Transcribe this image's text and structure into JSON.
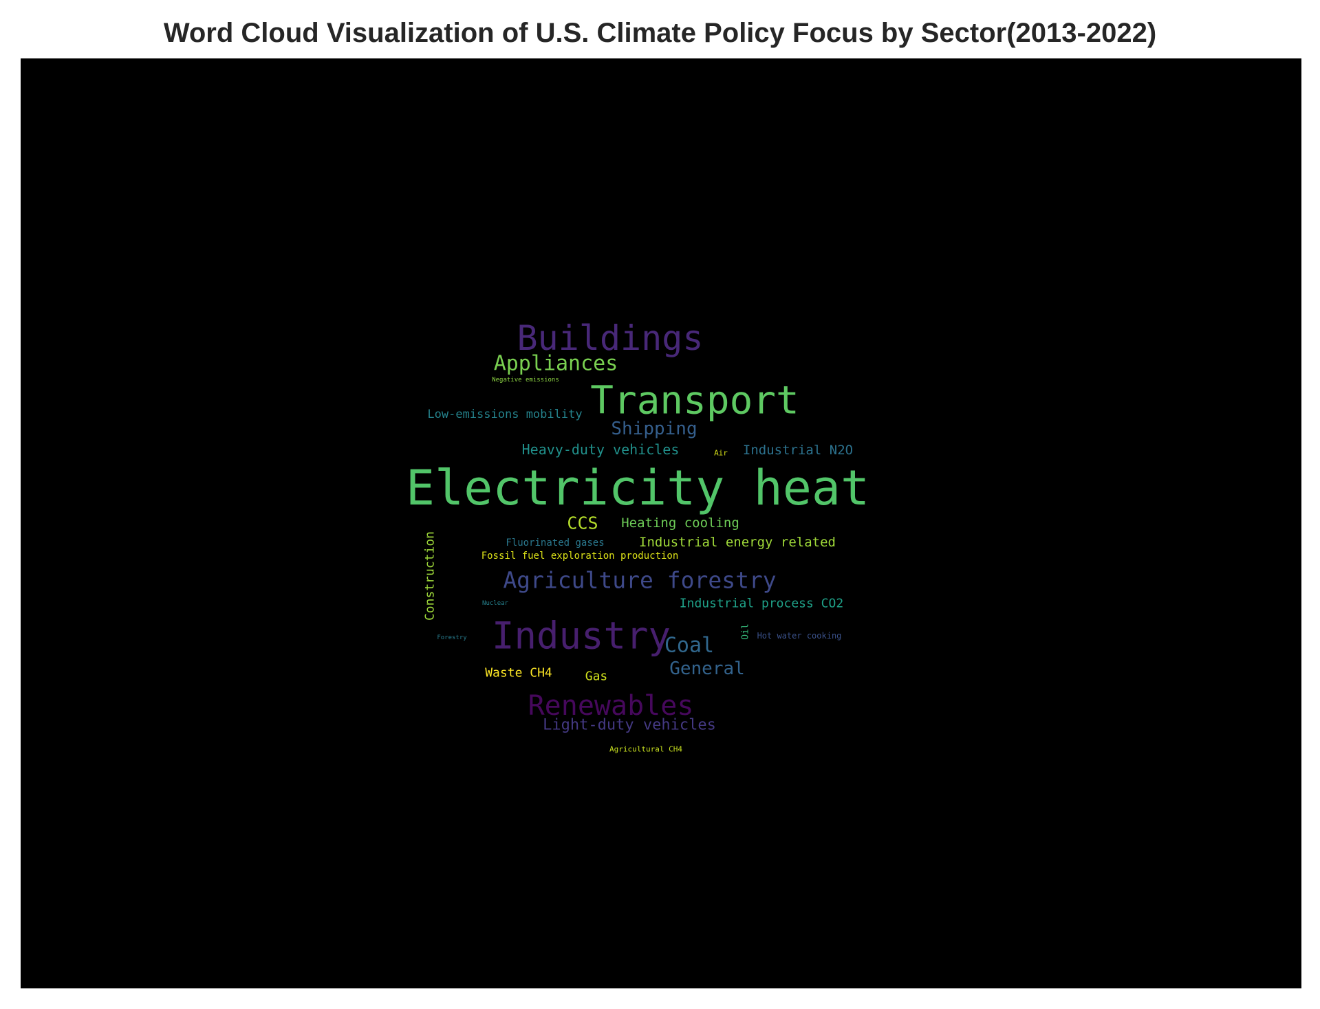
{
  "chart_data": {
    "type": "wordcloud",
    "title": "Word Cloud Visualization of U.S. Climate Policy Focus by Sector(2013-2022)",
    "background": "#000000",
    "colormap": "viridis",
    "words": [
      {
        "text": "Electricity heat",
        "weight": 100,
        "color": "#52c569"
      },
      {
        "text": "Transport",
        "weight": 80,
        "color": "#5ec962"
      },
      {
        "text": "Industry",
        "weight": 78,
        "color": "#471f6e"
      },
      {
        "text": "Buildings",
        "weight": 70,
        "color": "#482878"
      },
      {
        "text": "Renewables",
        "weight": 66,
        "color": "#46085c"
      },
      {
        "text": "Agriculture forestry",
        "weight": 55,
        "color": "#3e4989"
      },
      {
        "text": "Appliances",
        "weight": 50,
        "color": "#7ad151"
      },
      {
        "text": "Coal",
        "weight": 50,
        "color": "#31688e"
      },
      {
        "text": "Shipping",
        "weight": 46,
        "color": "#355f8d"
      },
      {
        "text": "General",
        "weight": 45,
        "color": "#33638d"
      },
      {
        "text": "CCS",
        "weight": 45,
        "color": "#b5de2b"
      },
      {
        "text": "Light-duty vehicles",
        "weight": 44,
        "color": "#443983"
      },
      {
        "text": "Heavy-duty vehicles",
        "weight": 41,
        "color": "#21918c"
      },
      {
        "text": "Industrial N2O",
        "weight": 38,
        "color": "#2c728e"
      },
      {
        "text": "Industrial energy related",
        "weight": 37,
        "color": "#a0da39"
      },
      {
        "text": "Heating cooling",
        "weight": 36,
        "color": "#6ece58"
      },
      {
        "text": "Industrial process CO2",
        "weight": 36,
        "color": "#1fa188"
      },
      {
        "text": "Low-emissions mobility",
        "weight": 34,
        "color": "#25848e"
      },
      {
        "text": "Construction",
        "weight": 34,
        "color": "#9fda3a"
      },
      {
        "text": "Waste CH4",
        "weight": 33,
        "color": "#fde725"
      },
      {
        "text": "Gas",
        "weight": 32,
        "color": "#d0e11c"
      },
      {
        "text": "Fluorinated gases",
        "weight": 28,
        "color": "#2a788e"
      },
      {
        "text": "Fossil fuel exploration production",
        "weight": 28,
        "color": "#dde318"
      },
      {
        "text": "Hot water cooking",
        "weight": 24,
        "color": "#3b528b"
      },
      {
        "text": "Oil",
        "weight": 24,
        "color": "#35b779"
      },
      {
        "text": "Agricultural CH4",
        "weight": 22,
        "color": "#c8e020"
      },
      {
        "text": "Air",
        "weight": 20,
        "color": "#d8e219"
      },
      {
        "text": "Negative emissions",
        "weight": 18,
        "color": "#8fd744"
      },
      {
        "text": "Nuclear",
        "weight": 16,
        "color": "#26828e"
      },
      {
        "text": "Forestry",
        "weight": 16,
        "color": "#287d8e"
      }
    ]
  }
}
